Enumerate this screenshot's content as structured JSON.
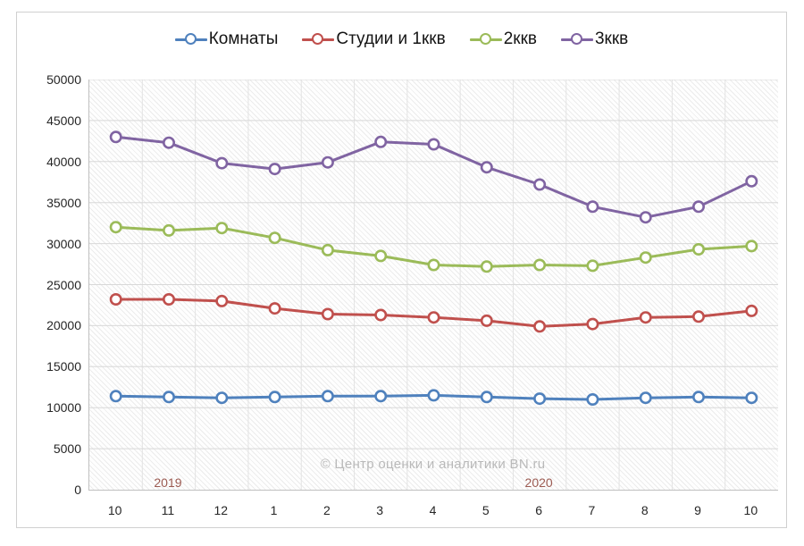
{
  "watermark": "© Центр оценки и аналитики BN.ru",
  "colors": {
    "series_blue": "#4F81BD",
    "series_red": "#C0504D",
    "series_green": "#9BBB59",
    "series_purple": "#8064A2",
    "year_label_text": "#9C5B52",
    "axis_text": "#262626",
    "watermark_text": "#B9B9B9"
  },
  "chart_data": {
    "type": "line",
    "title": "",
    "x_categories": [
      "10",
      "11",
      "12",
      "1",
      "2",
      "3",
      "4",
      "5",
      "6",
      "7",
      "8",
      "9",
      "10"
    ],
    "year_annotations": [
      {
        "label": "2019",
        "at_category_index": 1
      },
      {
        "label": "2020",
        "at_category_index": 8
      }
    ],
    "ylim": [
      0,
      50000
    ],
    "ytick_step": 5000,
    "yticks": [
      0,
      5000,
      10000,
      15000,
      20000,
      25000,
      30000,
      35000,
      40000,
      45000,
      50000
    ],
    "grid": true,
    "legend_position": "top",
    "marker_style": "open-circle",
    "series": [
      {
        "name": "Комнаты",
        "color": "#4F81BD",
        "values": [
          11400,
          11300,
          11200,
          11300,
          11400,
          11400,
          11500,
          11300,
          11100,
          11000,
          11200,
          11300,
          11200
        ]
      },
      {
        "name": "Студии и 1ккв",
        "color": "#C0504D",
        "values": [
          23200,
          23200,
          23000,
          22100,
          21400,
          21300,
          21000,
          20600,
          19900,
          20200,
          21000,
          21100,
          21800
        ]
      },
      {
        "name": "2ккв",
        "color": "#9BBB59",
        "values": [
          32000,
          31600,
          31900,
          30700,
          29200,
          28500,
          27400,
          27200,
          27400,
          27300,
          28300,
          29300,
          29700
        ]
      },
      {
        "name": "3ккв",
        "color": "#8064A2",
        "values": [
          43000,
          42300,
          39800,
          39100,
          39900,
          42400,
          42100,
          39300,
          37200,
          34500,
          33200,
          34500,
          37600
        ]
      }
    ]
  }
}
